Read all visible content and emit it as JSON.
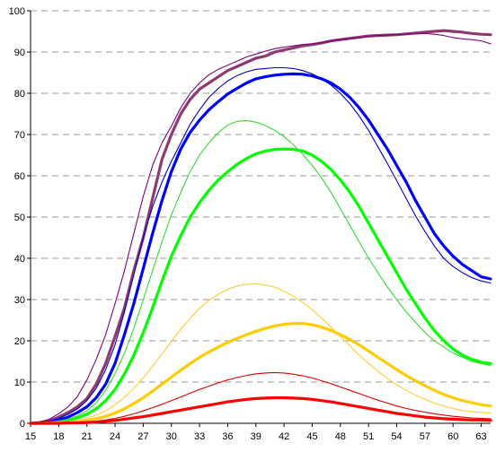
{
  "chart_data": {
    "type": "line",
    "title": "",
    "xlabel": "",
    "ylabel": "",
    "xlim": [
      15,
      64
    ],
    "ylim": [
      0,
      100
    ],
    "x_ticks": [
      15,
      18,
      21,
      24,
      27,
      30,
      33,
      36,
      39,
      42,
      45,
      48,
      51,
      54,
      57,
      60,
      63
    ],
    "y_ticks": [
      0,
      10,
      20,
      30,
      40,
      50,
      60,
      70,
      80,
      90,
      100
    ],
    "grid": "horizontal-dashed",
    "legend": "none",
    "x": [
      15,
      16,
      17,
      18,
      19,
      20,
      21,
      22,
      23,
      24,
      25,
      26,
      27,
      28,
      29,
      30,
      31,
      32,
      33,
      34,
      35,
      36,
      37,
      38,
      39,
      40,
      41,
      42,
      43,
      44,
      45,
      46,
      47,
      48,
      49,
      50,
      51,
      52,
      53,
      54,
      55,
      56,
      57,
      58,
      59,
      60,
      61,
      62,
      63,
      64
    ],
    "series": [
      {
        "color": "#8e3a6e",
        "stroke": "thick",
        "values": [
          0,
          0.2,
          0.6,
          1.5,
          2.6,
          4.0,
          6.0,
          9.5,
          14.5,
          21.0,
          28.0,
          37.0,
          45.0,
          54.5,
          64.0,
          70.0,
          75.0,
          78.5,
          81.0,
          82.5,
          84.0,
          85.5,
          86.5,
          87.5,
          88.5,
          89.0,
          90.0,
          90.5,
          91.0,
          91.5,
          91.8,
          92.2,
          92.7,
          93.0,
          93.3,
          93.6,
          93.9,
          94.0,
          94.1,
          94.2,
          94.4,
          94.6,
          94.8,
          95.0,
          95.2,
          95.0,
          94.8,
          94.5,
          94.3,
          94.2
        ]
      },
      {
        "color": "#800080",
        "stroke": "thin",
        "values": [
          0,
          0.3,
          1.0,
          2.3,
          4.0,
          6.5,
          10.5,
          15.5,
          21.5,
          29.0,
          37.0,
          46.0,
          55.0,
          62.5,
          68.0,
          72.0,
          76.5,
          80.0,
          82.5,
          84.5,
          85.8,
          86.8,
          87.8,
          88.8,
          89.5,
          90.2,
          90.8,
          91.2,
          91.5,
          91.8,
          92.0,
          92.3,
          92.6,
          93.0,
          93.3,
          93.5,
          93.8,
          94.0,
          94.1,
          94.2,
          94.3,
          94.4,
          94.5,
          94.3,
          94.0,
          93.5,
          93.2,
          93.0,
          92.7,
          92.0
        ]
      },
      {
        "color": "#0000ff",
        "stroke": "thick",
        "values": [
          0,
          0.1,
          0.3,
          0.8,
          1.5,
          2.6,
          4.0,
          6.2,
          9.5,
          14.5,
          21.5,
          29.0,
          37.5,
          46.0,
          54.0,
          61.0,
          66.5,
          70.5,
          73.5,
          76.0,
          78.0,
          79.8,
          81.2,
          82.5,
          83.5,
          84.0,
          84.4,
          84.6,
          84.7,
          84.6,
          84.2,
          83.5,
          82.5,
          81.0,
          79.0,
          76.5,
          73.5,
          70.0,
          66.5,
          62.5,
          58.5,
          54.0,
          50.0,
          46.0,
          43.0,
          40.5,
          38.5,
          37.0,
          35.5,
          35.0
        ]
      },
      {
        "color": "#0000cc",
        "stroke": "thin",
        "values": [
          0,
          0.2,
          0.5,
          1.2,
          2.2,
          3.5,
          5.5,
          8.5,
          13.0,
          19.0,
          27.0,
          36.0,
          45.0,
          52.5,
          58.5,
          63.5,
          68.0,
          72.5,
          76.0,
          79.0,
          81.2,
          83.0,
          84.3,
          85.2,
          85.8,
          86.0,
          86.2,
          86.2,
          86.0,
          85.5,
          84.7,
          83.5,
          82.0,
          80.0,
          77.5,
          74.5,
          71.0,
          67.0,
          63.0,
          58.8,
          54.5,
          50.3,
          46.5,
          43.0,
          40.0,
          38.0,
          36.5,
          35.3,
          34.5,
          34.0
        ]
      },
      {
        "color": "#00ff00",
        "stroke": "thick",
        "values": [
          0,
          0.0,
          0.1,
          0.3,
          0.7,
          1.3,
          2.2,
          3.5,
          5.5,
          8.2,
          12.0,
          16.5,
          22.0,
          28.0,
          34.5,
          40.5,
          45.5,
          50.0,
          53.5,
          56.5,
          59.0,
          61.0,
          62.8,
          64.2,
          65.3,
          66.0,
          66.4,
          66.5,
          66.4,
          66.0,
          65.0,
          63.5,
          61.5,
          59.0,
          56.0,
          52.5,
          48.5,
          44.5,
          40.5,
          36.5,
          32.5,
          29.0,
          25.5,
          22.5,
          20.0,
          18.0,
          16.5,
          15.5,
          14.8,
          14.5
        ]
      },
      {
        "color": "#33dd33",
        "stroke": "thin",
        "values": [
          0,
          0.0,
          0.2,
          0.5,
          1.0,
          1.8,
          3.0,
          5.0,
          8.0,
          12.0,
          17.0,
          23.0,
          30.0,
          37.0,
          44.0,
          50.5,
          56.0,
          61.0,
          65.0,
          68.0,
          70.5,
          72.3,
          73.2,
          73.4,
          73.0,
          72.2,
          71.0,
          69.5,
          67.5,
          65.2,
          62.5,
          59.5,
          56.0,
          52.0,
          48.0,
          44.0,
          40.0,
          36.5,
          33.0,
          30.0,
          27.0,
          24.5,
          22.0,
          20.0,
          18.5,
          17.0,
          16.0,
          15.0,
          14.5,
          14.0
        ]
      },
      {
        "color": "#ffcc00",
        "stroke": "thick",
        "values": [
          0,
          0.0,
          0.0,
          0.1,
          0.2,
          0.4,
          0.7,
          1.1,
          1.7,
          2.5,
          3.5,
          4.8,
          6.2,
          7.8,
          9.5,
          11.2,
          12.9,
          14.5,
          16.0,
          17.3,
          18.5,
          19.6,
          20.6,
          21.5,
          22.3,
          23.0,
          23.6,
          24.0,
          24.2,
          24.2,
          23.9,
          23.3,
          22.5,
          21.5,
          20.3,
          19.0,
          17.5,
          16.0,
          14.5,
          13.0,
          11.6,
          10.3,
          9.1,
          8.0,
          7.0,
          6.2,
          5.5,
          5.0,
          4.5,
          4.2
        ]
      },
      {
        "color": "#ffcc33",
        "stroke": "thin",
        "values": [
          0,
          0.0,
          0.1,
          0.2,
          0.4,
          0.7,
          1.2,
          2.0,
          3.0,
          4.5,
          6.3,
          8.5,
          11.0,
          13.8,
          16.8,
          19.8,
          22.8,
          25.5,
          27.9,
          29.8,
          31.3,
          32.5,
          33.3,
          33.7,
          33.8,
          33.5,
          33.0,
          32.0,
          30.8,
          29.3,
          27.5,
          25.5,
          23.3,
          21.0,
          18.8,
          16.5,
          14.5,
          12.6,
          10.9,
          9.4,
          8.0,
          6.8,
          5.8,
          4.9,
          4.2,
          3.6,
          3.1,
          2.8,
          2.6,
          2.5
        ]
      },
      {
        "color": "#ff0000",
        "stroke": "thick",
        "values": [
          0,
          0.0,
          0.0,
          0.0,
          0.1,
          0.1,
          0.2,
          0.3,
          0.5,
          0.7,
          1.0,
          1.3,
          1.6,
          2.0,
          2.4,
          2.8,
          3.2,
          3.6,
          4.0,
          4.4,
          4.8,
          5.2,
          5.5,
          5.8,
          6.0,
          6.1,
          6.2,
          6.2,
          6.1,
          6.0,
          5.8,
          5.5,
          5.2,
          4.8,
          4.4,
          4.0,
          3.6,
          3.2,
          2.8,
          2.4,
          2.1,
          1.8,
          1.5,
          1.3,
          1.1,
          1.0,
          0.9,
          0.8,
          0.8,
          0.7
        ]
      },
      {
        "color": "#dd0000",
        "stroke": "thin",
        "values": [
          0,
          0.0,
          0.0,
          0.1,
          0.1,
          0.2,
          0.3,
          0.5,
          0.8,
          1.2,
          1.7,
          2.3,
          3.0,
          3.8,
          4.6,
          5.5,
          6.4,
          7.3,
          8.2,
          9.0,
          9.8,
          10.5,
          11.1,
          11.6,
          12.0,
          12.2,
          12.3,
          12.2,
          11.9,
          11.5,
          11.0,
          10.3,
          9.6,
          8.8,
          8.0,
          7.2,
          6.4,
          5.6,
          4.9,
          4.2,
          3.6,
          3.1,
          2.7,
          2.3,
          2.0,
          1.7,
          1.5,
          1.3,
          1.2,
          1.1
        ]
      }
    ]
  }
}
